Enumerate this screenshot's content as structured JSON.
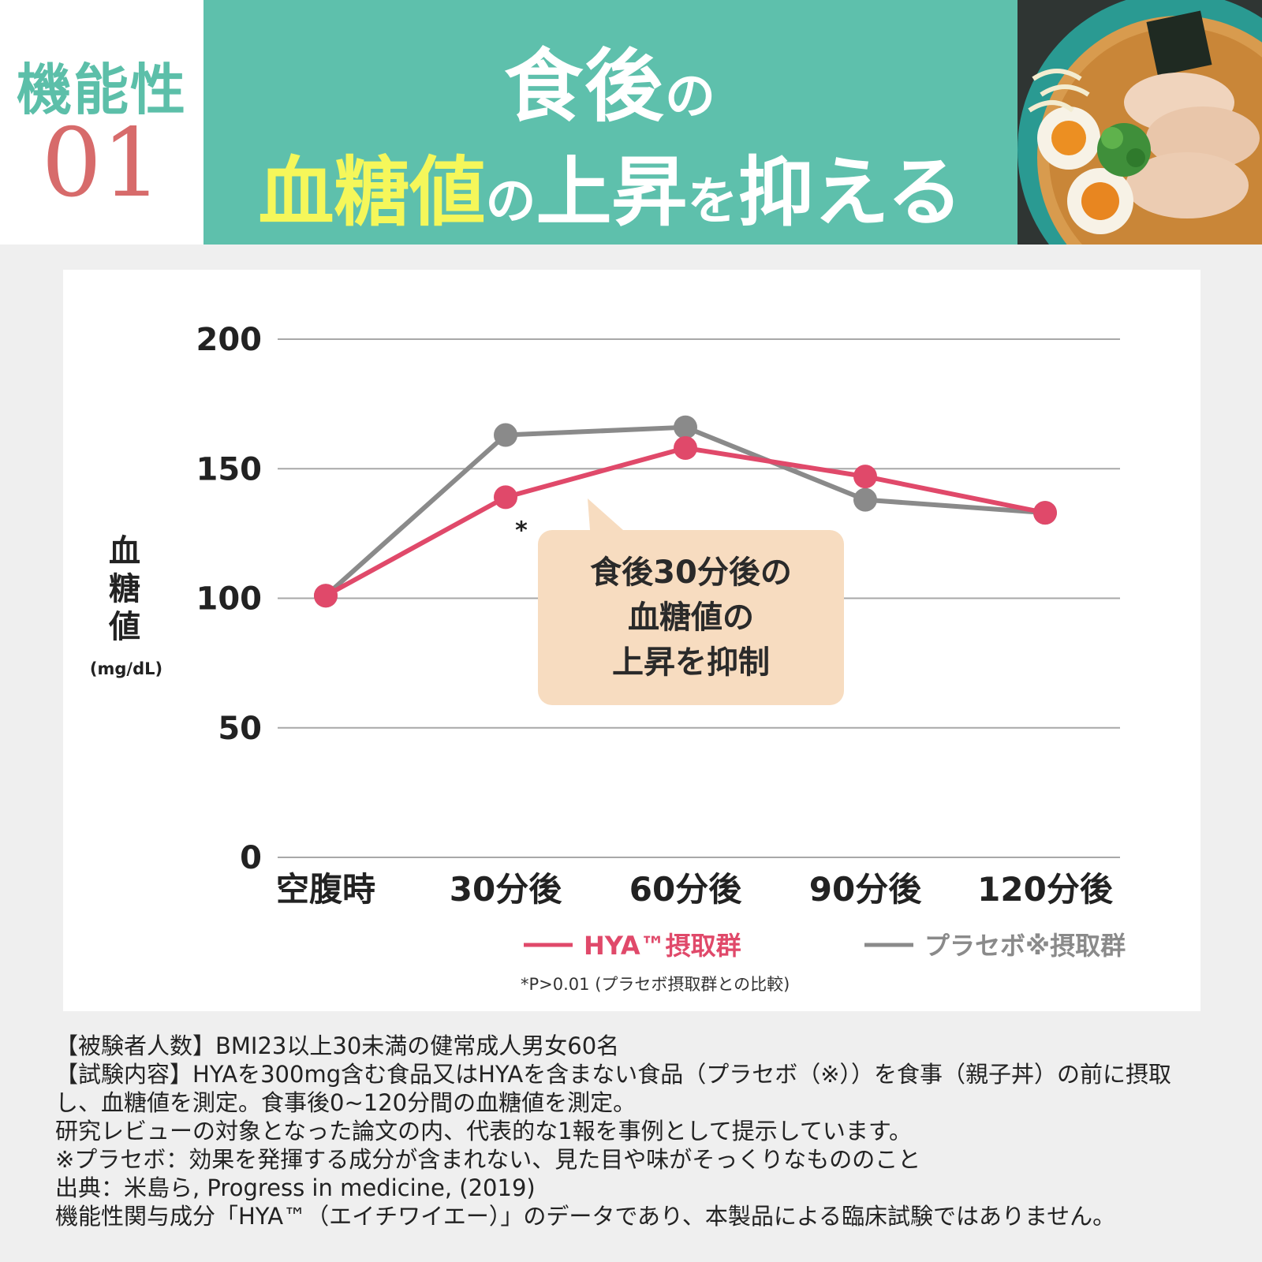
{
  "badge": {
    "label": "機能性",
    "number": "01"
  },
  "title": {
    "line1_main": "食後",
    "line1_suffix": "の",
    "line2_highlight": "血糖値",
    "line2_particle1": "の",
    "line2_mid": "上昇",
    "line2_particle2": "を",
    "line2_end": "抑える"
  },
  "chart_data": {
    "type": "line",
    "categories": [
      "空腹時",
      "30分後",
      "60分後",
      "90分後",
      "120分後"
    ],
    "ylabel": "血糖値",
    "yunit": "(mg/dL)",
    "yticks": [
      "200",
      "150",
      "100",
      "50",
      "0"
    ],
    "ylim": [
      0,
      200
    ],
    "grid": true,
    "series": [
      {
        "name": "HYA™摂取群",
        "color": "#e0496a",
        "values": [
          101,
          139,
          158,
          147,
          133
        ]
      },
      {
        "name": "プラセボ※摂取群",
        "color": "#8a8a8a",
        "values": [
          101,
          163,
          166,
          138,
          133
        ]
      }
    ],
    "annotation_marker": "*",
    "callout": [
      "食後30分後の",
      "血糖値の",
      "上昇を抑制"
    ],
    "legend_position": "bottom-center",
    "footnote": "*P>0.01 (プラセボ摂取群との比較)"
  },
  "notes": [
    "【被験者人数】BMI23以上30未満の健常成人男女60名",
    "【試験内容】HYAを300mg含む食品又はHYAを含まない食品（プラセボ（※））を食事（親子丼）の前に摂取",
    "し、血糖値を測定。食事後0~120分間の血糖値を測定。",
    "研究レビューの対象となった論文の内、代表的な1報を事例として提示しています。",
    "※プラセボ：効果を発揮する成分が含まれない、見た目や味がそっくりなもののこと",
    "出典：米島ら, Progress in medicine, (2019)",
    "機能性関与成分「HYA™（エイチワイエー）」のデータであり、本製品による臨床試験ではありません。"
  ]
}
